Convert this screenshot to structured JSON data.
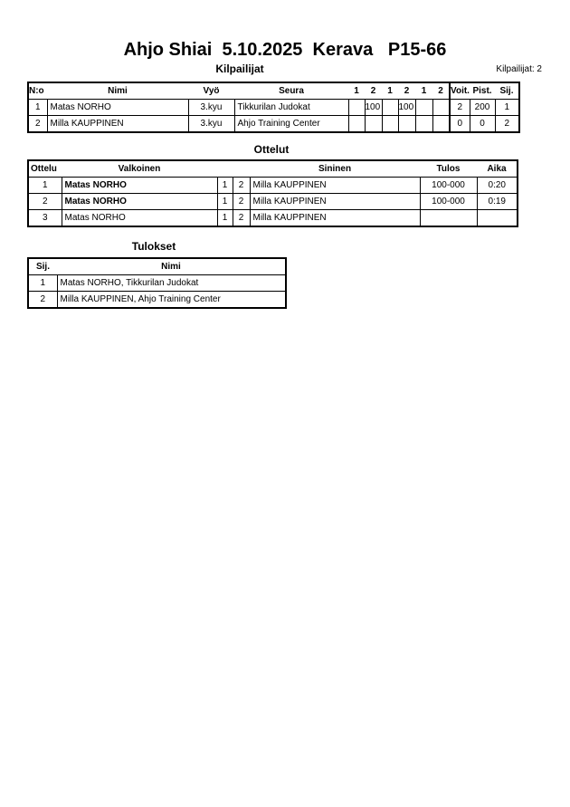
{
  "title": "Ahjo Shiai  5.10.2025  Kerava   P15-66",
  "competitors": {
    "heading": "Kilpailijat",
    "count_label": "Kilpailijat: 2",
    "headers": [
      "N:o",
      "Nimi",
      "Vyö",
      "Seura",
      "1",
      "2",
      "1",
      "2",
      "1",
      "2",
      "Voit.",
      "Pist.",
      "Sij."
    ],
    "rows": [
      {
        "no": "1",
        "name": "Matas NORHO",
        "belt": "3.kyu",
        "club": "Tikkurilan Judokat",
        "s": [
          "",
          "100",
          "",
          "100",
          "",
          ""
        ],
        "wins": "2",
        "points": "200",
        "rank": "1"
      },
      {
        "no": "2",
        "name": "Milla KAUPPINEN",
        "belt": "3.kyu",
        "club": "Ahjo Training Center",
        "s": [
          "",
          "",
          "",
          "",
          "",
          ""
        ],
        "wins": "0",
        "points": "0",
        "rank": "2"
      }
    ]
  },
  "matches": {
    "heading": "Ottelut",
    "headers": [
      "Ottelu",
      "Valkoinen",
      "Sininen",
      "Tulos",
      "Aika"
    ],
    "rows": [
      {
        "no": "1",
        "white": "Matas NORHO",
        "w": "1",
        "b": "2",
        "blue": "Milla KAUPPINEN",
        "result": "100-000",
        "time": "0:20",
        "white_bold": true
      },
      {
        "no": "2",
        "white": "Matas NORHO",
        "w": "1",
        "b": "2",
        "blue": "Milla KAUPPINEN",
        "result": "100-000",
        "time": "0:19",
        "white_bold": true
      },
      {
        "no": "3",
        "white": "Matas NORHO",
        "w": "1",
        "b": "2",
        "blue": "Milla KAUPPINEN",
        "result": "",
        "time": "",
        "white_bold": false
      }
    ]
  },
  "results": {
    "heading": "Tulokset",
    "headers": [
      "Sij.",
      "Nimi"
    ],
    "rows": [
      {
        "rank": "1",
        "name": "Matas NORHO, Tikkurilan Judokat"
      },
      {
        "rank": "2",
        "name": "Milla KAUPPINEN, Ahjo Training Center"
      }
    ]
  }
}
